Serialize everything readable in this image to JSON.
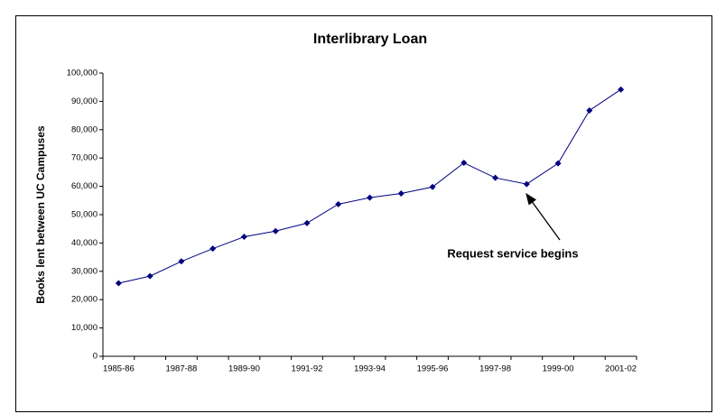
{
  "chart_data": {
    "type": "line",
    "title": "Interlibrary Loan",
    "y_label": "Books lent between UC Campuses",
    "categories": [
      "1985-86",
      null,
      "1987-88",
      null,
      "1989-90",
      null,
      "1991-92",
      null,
      "1993-94",
      null,
      "1995-96",
      null,
      "1997-98",
      null,
      "1999-00",
      null,
      "2001-02"
    ],
    "series": [
      {
        "name": "Books lent",
        "color": "#000080",
        "values": [
          25800,
          28300,
          33500,
          38000,
          42200,
          44200,
          47000,
          53700,
          56000,
          57500,
          59800,
          68300,
          63000,
          60800,
          68100,
          86800,
          94200
        ]
      }
    ],
    "ylim": [
      0,
      100000
    ],
    "yticks": [
      0,
      {
        "value": 10000,
        "label": "10,000"
      },
      {
        "value": 20000,
        "label": "20,000"
      },
      {
        "value": 30000,
        "label": "30,000"
      },
      {
        "value": 40000,
        "label": "40,000"
      },
      {
        "value": 50000,
        "label": "50,000"
      },
      {
        "value": 60000,
        "label": "60,000"
      },
      {
        "value": 70000,
        "label": "70,000"
      },
      {
        "value": 80000,
        "label": "80,000"
      },
      {
        "value": 90000,
        "label": "90,000"
      },
      {
        "value": 100000,
        "label": "100,000"
      }
    ],
    "annotation": "Request service begins"
  }
}
